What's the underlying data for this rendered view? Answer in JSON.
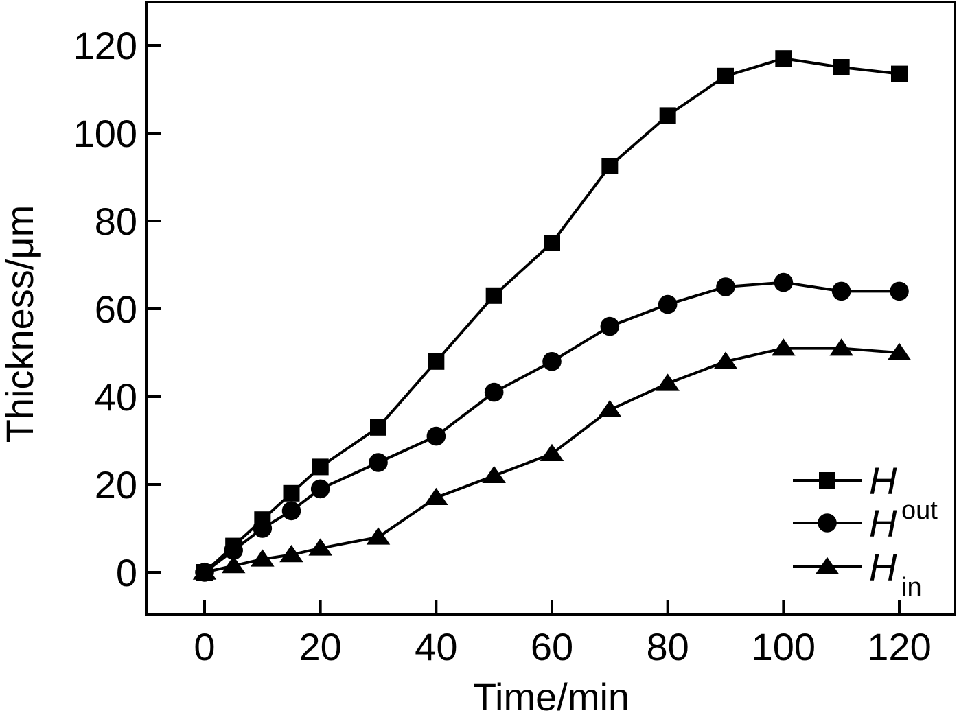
{
  "chart_data": {
    "type": "line",
    "title": "",
    "xlabel": "Time/min",
    "ylabel": "Thickness/μm",
    "xlim": [
      -10,
      127
    ],
    "ylim": [
      -10,
      130
    ],
    "xticks": [
      0,
      20,
      40,
      60,
      80,
      100,
      120
    ],
    "yticks": [
      0,
      20,
      40,
      60,
      80,
      100,
      120
    ],
    "grid": false,
    "legend_position": "bottom-right",
    "colors": {
      "line": "#000000",
      "background": "#ffffff"
    },
    "series": [
      {
        "name": "H",
        "label_main": "H",
        "label_sub": "",
        "label_sup": "",
        "marker": "square",
        "x": [
          0,
          5,
          10,
          15,
          20,
          30,
          40,
          50,
          60,
          70,
          80,
          90,
          100,
          110,
          120
        ],
        "y": [
          0,
          6,
          12,
          18,
          24,
          33,
          48,
          63,
          75,
          92.5,
          104,
          113,
          117,
          115,
          113.5
        ]
      },
      {
        "name": "Hout",
        "label_main": "H",
        "label_sub": "",
        "label_sup": "out",
        "marker": "circle",
        "x": [
          0,
          5,
          10,
          15,
          20,
          30,
          40,
          50,
          60,
          70,
          80,
          90,
          100,
          110,
          120
        ],
        "y": [
          0,
          5,
          10,
          14,
          19,
          25,
          31,
          41,
          48,
          56,
          61,
          65,
          66,
          64,
          64
        ]
      },
      {
        "name": "Hin",
        "label_main": "H",
        "label_sub": "in",
        "label_sup": "",
        "marker": "triangle",
        "x": [
          0,
          5,
          10,
          15,
          20,
          30,
          40,
          50,
          60,
          70,
          80,
          90,
          100,
          110,
          120
        ],
        "y": [
          0,
          1.5,
          3,
          4,
          5.5,
          8,
          17,
          22,
          27,
          37,
          43,
          48,
          51,
          51,
          50
        ]
      }
    ]
  }
}
